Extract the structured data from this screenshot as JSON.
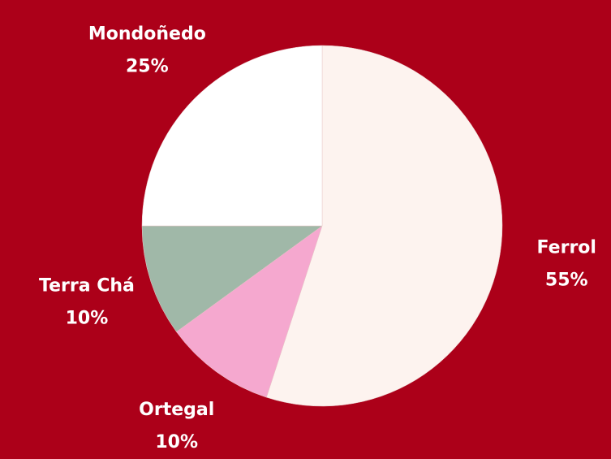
{
  "chart_data": {
    "type": "pie",
    "categories": [
      "Ferrol",
      "Ortegal",
      "Terra Chá",
      "Mondoñedo"
    ],
    "values": [
      55,
      10,
      10,
      25
    ],
    "value_labels": [
      "55%",
      "10%",
      "10%",
      "25%"
    ],
    "colors": [
      "#fdf3ef",
      "#f5a8cf",
      "#a0b8a8",
      "#ffffff"
    ]
  }
}
